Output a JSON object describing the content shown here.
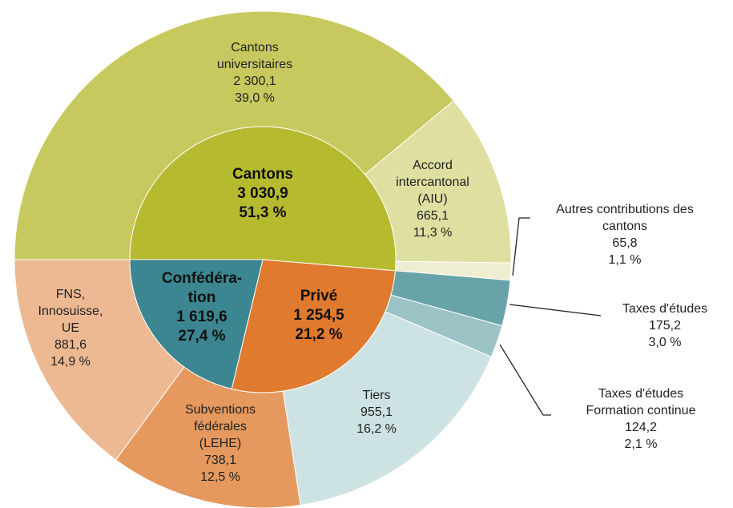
{
  "chart_data": {
    "type": "sunburst",
    "inner": {
      "names": [
        [
          "Cantons"
        ],
        [
          "Confédéra-",
          "tion"
        ],
        [
          "Privé"
        ]
      ],
      "values": [
        3030.9,
        1619.6,
        1254.5
      ],
      "value_labels": [
        "3 030,9",
        "1 619,6",
        "1 254,5"
      ],
      "percents": [
        51.3,
        27.4,
        21.2
      ],
      "percent_labels": [
        "51,3 %",
        "27,4 %",
        "21,2 %"
      ],
      "colors": [
        "#b6ba2f",
        "#e07a2f",
        "#3b8690"
      ]
    },
    "outer": {
      "names": [
        [
          "Cantons",
          "universitaires"
        ],
        [
          "Accord",
          "intercantonal",
          "(AIU)"
        ],
        [
          "Autres contributions des",
          "cantons"
        ],
        [
          "Taxes d'études"
        ],
        [
          "Taxes d'études",
          "Formation continue"
        ],
        [
          "Tiers"
        ],
        [
          "Subventions",
          "fédérales",
          "(LEHE)"
        ],
        [
          "FNS,",
          "Innosuisse,",
          "UE"
        ]
      ],
      "values": [
        2300.1,
        665.1,
        65.8,
        175.2,
        124.2,
        955.1,
        738.1,
        881.6
      ],
      "value_labels": [
        "2 300,1",
        "665,1",
        "65,8",
        "175,2",
        "124,2",
        "955,1",
        "738,1",
        "881,6"
      ],
      "percents": [
        39.0,
        11.3,
        1.1,
        3.0,
        2.1,
        16.2,
        12.5,
        14.9
      ],
      "percent_labels": [
        "39,0 %",
        "11,3 %",
        "1,1 %",
        "3,0 %",
        "2,1 %",
        "16,2 %",
        "12,5 %",
        "14,9 %"
      ],
      "colors": [
        "#c7c95e",
        "#dfdfa1",
        "#efeed2",
        "#68a3a9",
        "#9cc4c7",
        "#cde2e3",
        "#e5995e",
        "#edb993"
      ]
    }
  }
}
